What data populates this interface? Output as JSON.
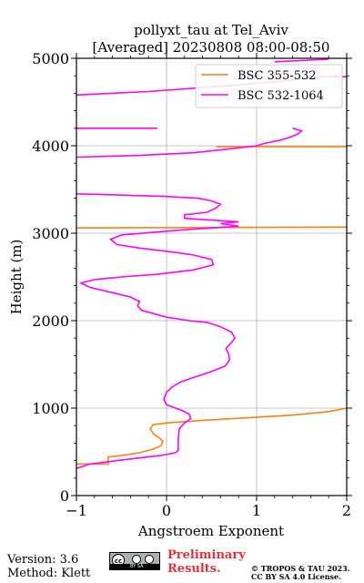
{
  "footer": {
    "version": "Version: 3.6",
    "method": "Method: Klett",
    "preliminary_line1": "Preliminary",
    "preliminary_line2": "Results.",
    "copyright_line1": "© TROPOS & TAU 2023.",
    "copyright_line2": "CC BY SA 4.0 License.",
    "license_badge": "BY SA"
  },
  "colors": {
    "bsc_355_532": "#ff7f0e",
    "bsc_532_1064": "#ff00ff",
    "grid": "#b0b0b0",
    "preliminary": "#e8303a"
  },
  "chart_data": {
    "type": "line",
    "title_line1": "pollyxt_tau at Tel_Aviv",
    "title_line2": "[Averaged] 20230808 08:00-08:50",
    "xlabel": "Angstroem Exponent",
    "ylabel": "Height (m)",
    "xlim": [
      -1,
      2
    ],
    "ylim": [
      0,
      5000
    ],
    "xticks": [
      -1,
      0,
      1,
      2
    ],
    "yticks": [
      0,
      1000,
      2000,
      3000,
      4000,
      5000
    ],
    "grid": true,
    "legend_position": "top-right",
    "series": [
      {
        "name": "BSC 355-532",
        "color": "#ff7f0e",
        "points": [
          [
            -1.0,
            360
          ],
          [
            -0.65,
            360
          ],
          [
            -0.65,
            440
          ],
          [
            -0.48,
            460
          ],
          [
            -0.3,
            490
          ],
          [
            -0.15,
            530
          ],
          [
            -0.06,
            570
          ],
          [
            -0.04,
            620
          ],
          [
            -0.08,
            660
          ],
          [
            -0.14,
            700
          ],
          [
            -0.18,
            760
          ],
          [
            -0.15,
            810
          ],
          [
            0.0,
            830
          ],
          [
            0.4,
            860
          ],
          [
            0.9,
            890
          ],
          [
            1.4,
            920
          ],
          [
            1.8,
            960
          ],
          [
            2.0,
            1000
          ]
        ],
        "gaps_after": [
          17
        ],
        "extra_segments": [
          [
            [
              -1.0,
              3060
            ],
            [
              2.0,
              3070
            ]
          ],
          [
            [
              0.55,
              3990
            ],
            [
              2.0,
              3990
            ]
          ]
        ]
      },
      {
        "name": "BSC 532-1064",
        "color": "#ff00ff",
        "points": [
          [
            -1.0,
            310
          ],
          [
            -0.85,
            360
          ],
          [
            -0.55,
            400
          ],
          [
            -0.3,
            430
          ],
          [
            -0.05,
            460
          ],
          [
            0.1,
            490
          ],
          [
            0.13,
            520
          ],
          [
            0.13,
            650
          ],
          [
            0.14,
            760
          ],
          [
            0.2,
            830
          ],
          [
            0.27,
            880
          ],
          [
            0.25,
            930
          ],
          [
            0.18,
            970
          ],
          [
            0.1,
            1000
          ],
          [
            0.0,
            1040
          ],
          [
            -0.03,
            1100
          ],
          [
            0.0,
            1180
          ],
          [
            0.06,
            1240
          ],
          [
            0.16,
            1300
          ],
          [
            0.3,
            1350
          ],
          [
            0.5,
            1420
          ],
          [
            0.65,
            1480
          ],
          [
            0.7,
            1550
          ],
          [
            0.69,
            1620
          ],
          [
            0.66,
            1680
          ],
          [
            0.72,
            1750
          ],
          [
            0.76,
            1800
          ],
          [
            0.72,
            1870
          ],
          [
            0.6,
            1930
          ],
          [
            0.45,
            1980
          ],
          [
            0.25,
            2000
          ],
          [
            0.0,
            2040
          ],
          [
            -0.28,
            2120
          ],
          [
            -0.32,
            2170
          ],
          [
            -0.3,
            2220
          ],
          [
            -0.4,
            2270
          ],
          [
            -0.6,
            2320
          ],
          [
            -0.85,
            2380
          ],
          [
            -0.95,
            2430
          ],
          [
            -0.8,
            2470
          ],
          [
            -0.5,
            2500
          ],
          [
            -0.1,
            2530
          ],
          [
            0.3,
            2580
          ],
          [
            0.52,
            2640
          ],
          [
            0.5,
            2700
          ],
          [
            0.3,
            2750
          ],
          [
            0.1,
            2780
          ],
          [
            -0.3,
            2830
          ],
          [
            -0.55,
            2870
          ],
          [
            -0.62,
            2930
          ],
          [
            -0.5,
            2980
          ],
          [
            0.2,
            3040
          ],
          [
            0.8,
            3080
          ],
          [
            0.6,
            3110
          ],
          [
            0.8,
            3130
          ],
          [
            0.2,
            3170
          ],
          [
            0.2,
            3210
          ],
          [
            0.45,
            3240
          ],
          [
            0.55,
            3290
          ],
          [
            0.6,
            3330
          ],
          [
            0.5,
            3370
          ],
          [
            0.35,
            3400
          ],
          [
            0.0,
            3420
          ],
          [
            -0.6,
            3440
          ],
          [
            -1.0,
            3450
          ]
        ],
        "extra_segments": [
          [
            [
              -1.0,
              3870
            ],
            [
              -0.3,
              3890
            ],
            [
              0.3,
              3920
            ],
            [
              0.75,
              3970
            ],
            [
              1.0,
              4000
            ],
            [
              1.1,
              4030
            ],
            [
              1.25,
              4060
            ],
            [
              1.35,
              4090
            ],
            [
              1.45,
              4130
            ],
            [
              1.5,
              4170
            ],
            [
              1.4,
              4200
            ]
          ],
          [
            [
              -1.0,
              4200
            ],
            [
              -0.1,
              4200
            ]
          ],
          [
            [
              -1.0,
              4580
            ],
            [
              -0.2,
              4620
            ],
            [
              0.6,
              4680
            ],
            [
              1.3,
              4740
            ],
            [
              1.7,
              4790
            ],
            [
              2.0,
              4790
            ]
          ],
          [
            [
              1.2,
              4960
            ],
            [
              1.8,
              4990
            ]
          ]
        ]
      }
    ]
  }
}
